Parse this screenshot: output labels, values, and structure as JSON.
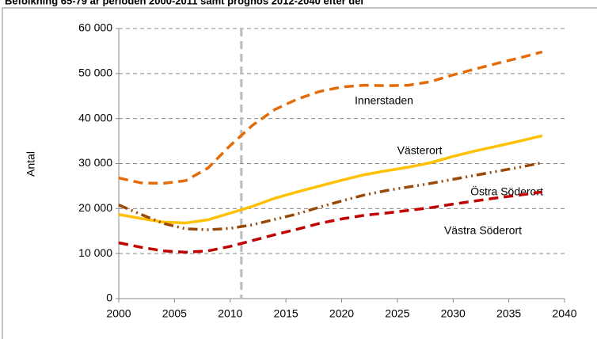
{
  "chart_data": {
    "type": "line",
    "title": "Befolkning 65-79 år perioden 2000-2011 samt prognos 2012-2040 efter del",
    "y_label": "Antal",
    "x": [
      2000,
      2002,
      2004,
      2006,
      2008,
      2010,
      2012,
      2014,
      2016,
      2018,
      2020,
      2022,
      2024,
      2026,
      2028,
      2030,
      2032,
      2034,
      2036,
      2038
    ],
    "series": [
      {
        "name": "Innerstaden",
        "color": "#e36c09",
        "dash": "dashed",
        "values": [
          26800,
          25700,
          25600,
          26200,
          29000,
          34000,
          38500,
          42000,
          44300,
          46000,
          47000,
          47400,
          47300,
          47400,
          48200,
          49700,
          51000,
          52300,
          53500,
          54800
        ]
      },
      {
        "name": "Västerort",
        "color": "#ffc000",
        "dash": "solid",
        "values": [
          18700,
          17800,
          17000,
          16800,
          17500,
          19000,
          20500,
          22300,
          23700,
          25000,
          26300,
          27500,
          28400,
          29200,
          30200,
          31600,
          32800,
          33900,
          35000,
          36200
        ]
      },
      {
        "name": "Östra Söderort",
        "color": "#984807",
        "dash": "dashdot",
        "values": [
          20800,
          18700,
          16700,
          15500,
          15300,
          15600,
          16400,
          17600,
          18800,
          20300,
          21700,
          23000,
          24000,
          24800,
          25600,
          26500,
          27400,
          28300,
          29200,
          30200
        ]
      },
      {
        "name": "Västra Söderort",
        "color": "#c00000",
        "dash": "dashed",
        "values": [
          12400,
          11400,
          10600,
          10300,
          10600,
          11600,
          12900,
          14200,
          15400,
          16700,
          17700,
          18500,
          19000,
          19600,
          20200,
          21000,
          21700,
          22400,
          23000,
          23700
        ]
      }
    ],
    "divider_x": 2011,
    "xlim": [
      2000,
      2040
    ],
    "xticks": [
      2000,
      2005,
      2010,
      2015,
      2020,
      2025,
      2030,
      2035,
      2040
    ],
    "ylim": [
      0,
      60000
    ],
    "yticks": [
      {
        "value": 0,
        "label": "0"
      },
      {
        "value": 10000,
        "label": "10 000"
      },
      {
        "value": 20000,
        "label": "20 000"
      },
      {
        "value": 30000,
        "label": "30 000"
      },
      {
        "value": 40000,
        "label": "40 000"
      },
      {
        "value": 50000,
        "label": "50 000"
      },
      {
        "value": 60000,
        "label": "60 000"
      }
    ],
    "grid": true
  }
}
